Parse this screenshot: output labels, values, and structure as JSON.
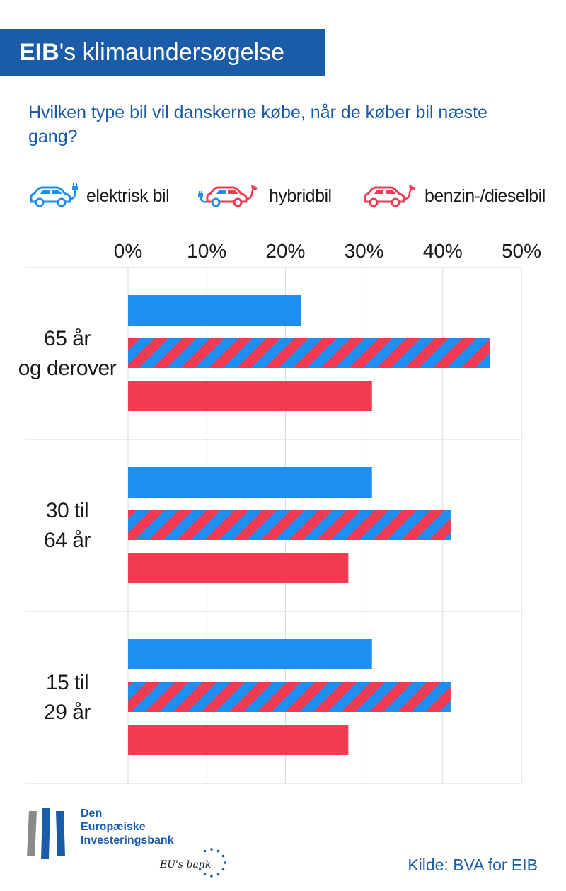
{
  "header": {
    "title_bold": "EIB",
    "title_rest": "'s klimaundersøgelse",
    "question": "Hvilken type bil vil danskerne købe, når de køber bil næste gang?"
  },
  "colors": {
    "blue": "#1e8ef0",
    "red": "#f23a52",
    "title_bg": "#1a5ca8",
    "text_blue": "#1a5ca8"
  },
  "legend": [
    {
      "label": "elektrisk bil",
      "icon": "electric-car-icon",
      "color": "#1e8ef0"
    },
    {
      "label": "hybridbil",
      "icon": "hybrid-car-icon",
      "color": "#f23a52"
    },
    {
      "label": "benzin-/dieselbil",
      "icon": "petrol-car-icon",
      "color": "#f23a52"
    }
  ],
  "chart_data": {
    "type": "bar",
    "orientation": "horizontal",
    "categories": [
      "65 år og derover",
      "30 til 64 år",
      "15 til 29 år"
    ],
    "category_lines": [
      [
        "65 år",
        "og derover"
      ],
      [
        "30 til",
        "64 år"
      ],
      [
        "15 til",
        "29 år"
      ]
    ],
    "series": [
      {
        "name": "elektrisk bil",
        "values": [
          22,
          31,
          31
        ]
      },
      {
        "name": "hybridbil",
        "values": [
          46,
          41,
          41
        ]
      },
      {
        "name": "benzin-/dieselbil",
        "values": [
          31,
          28,
          28
        ]
      }
    ],
    "xlim": [
      0,
      50
    ],
    "ticks": [
      "0%",
      "10%",
      "20%",
      "30%",
      "40%",
      "50%"
    ],
    "tick_values": [
      0,
      10,
      20,
      30,
      40,
      50
    ],
    "grid": true,
    "legend_position": "top"
  },
  "footer": {
    "bank_lines": [
      "Den",
      "Europæiske",
      "Investeringsbank"
    ],
    "tagline": "EU's bank",
    "source": "Kilde: BVA for EIB"
  }
}
